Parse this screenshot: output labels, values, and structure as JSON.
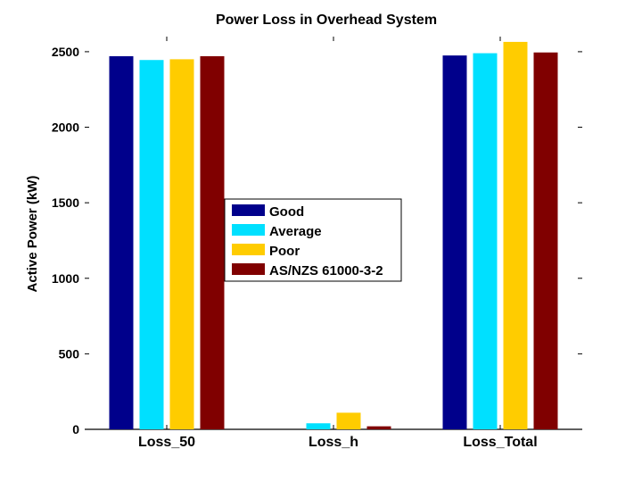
{
  "chart_data": {
    "type": "bar",
    "title": "Power Loss in Overhead System",
    "xlabel": "",
    "ylabel": "Active Power (kW)",
    "ylim": [
      0,
      2600
    ],
    "yticks": [
      0,
      500,
      1000,
      1500,
      2000,
      2500
    ],
    "grid": false,
    "legend_position": "center",
    "categories": [
      "Loss_50",
      "Loss_h",
      "Loss_Total"
    ],
    "series": [
      {
        "name": "Good",
        "color": "#00008B",
        "values": [
          2470,
          0,
          2475
        ]
      },
      {
        "name": "Average",
        "color": "#00E0FF",
        "values": [
          2445,
          40,
          2490
        ]
      },
      {
        "name": "Poor",
        "color": "#FFCC00",
        "values": [
          2450,
          110,
          2565
        ]
      },
      {
        "name": "AS/NZS 61000-3-2",
        "color": "#800000",
        "values": [
          2470,
          20,
          2495
        ]
      }
    ]
  }
}
